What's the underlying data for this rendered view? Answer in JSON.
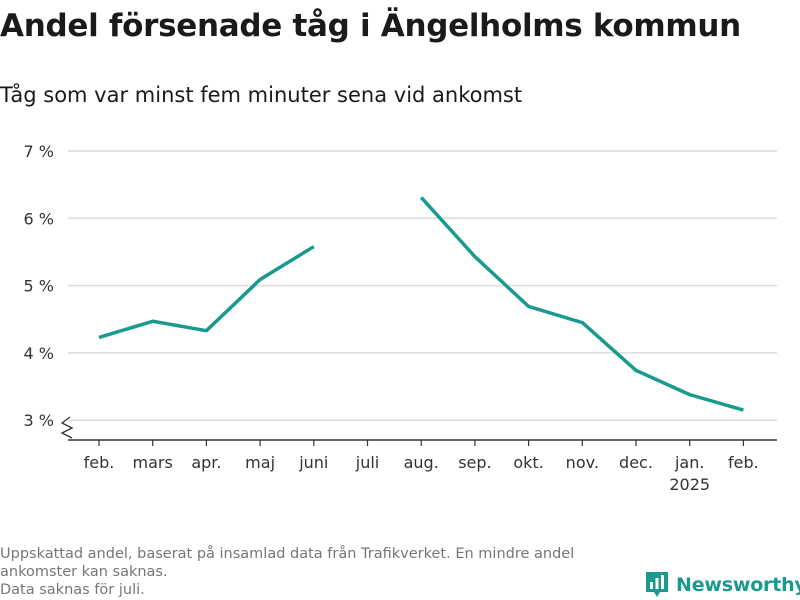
{
  "title": "Andel försenade tåg i Ängelholms kommun",
  "subtitle": "Tåg som var minst fem minuter sena vid ankomst",
  "chart_data": {
    "type": "line",
    "categories": [
      "feb.",
      "mars",
      "apr.",
      "maj",
      "juni",
      "juli",
      "aug.",
      "sep.",
      "okt.",
      "nov.",
      "dec.",
      "jan.",
      "feb."
    ],
    "category_sublabels": [
      "",
      "",
      "",
      "",
      "",
      "",
      "",
      "",
      "",
      "",
      "",
      "2025",
      ""
    ],
    "series": [
      {
        "values": [
          4.23,
          4.47,
          4.33,
          5.09,
          5.58,
          null,
          6.31,
          5.43,
          4.69,
          4.45,
          3.74,
          3.38,
          3.15
        ]
      }
    ],
    "yticks": [
      3,
      4,
      5,
      6,
      7
    ],
    "ytick_labels": [
      "3 %",
      "4 %",
      "5 %",
      "6 %",
      "7 %"
    ],
    "ylim": [
      2.67,
      7.0
    ],
    "xlabel": "",
    "ylabel": "",
    "grid": true,
    "axis_break": true,
    "colors": {
      "line": "#1a9a8e",
      "grid": "#dcdcdc",
      "axis": "#333333",
      "tick_text": "#333333"
    }
  },
  "footnote": {
    "line1": "Uppskattad andel, baserat på insamlad data från Trafikverket. En mindre andel ankomster kan saknas.",
    "line2": "Data saknas för juli."
  },
  "brand": {
    "name": "Newsworthy",
    "icon": "bar-chart-logo-icon",
    "color": "#1a9a8e"
  }
}
